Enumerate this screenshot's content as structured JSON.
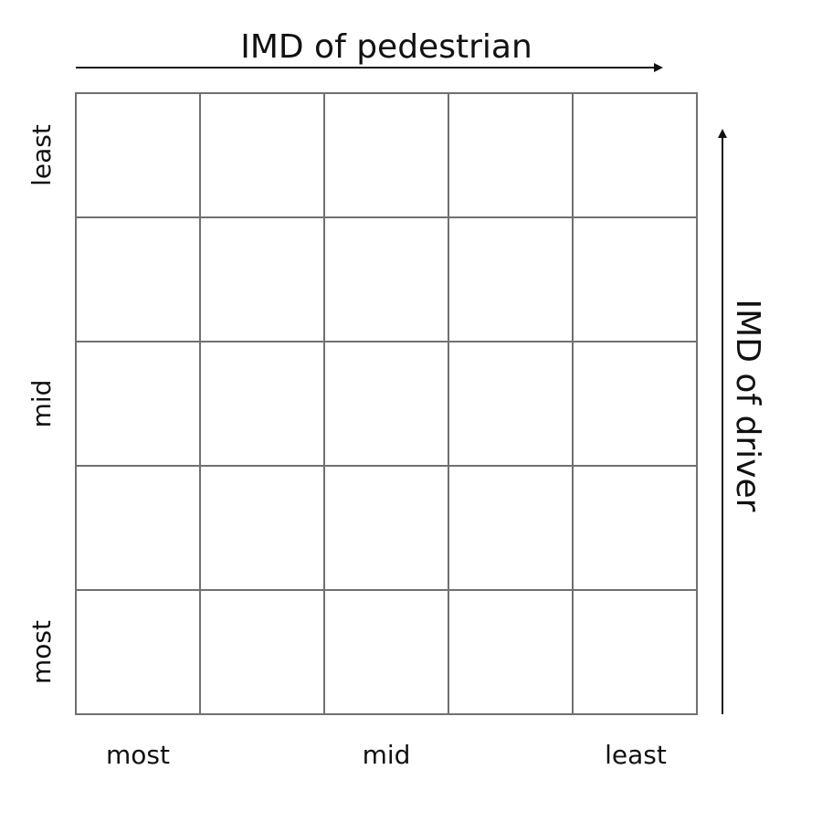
{
  "top_axis": {
    "label": "IMD of pedestrian"
  },
  "right_axis": {
    "label": "IMD of driver"
  },
  "bottom_ticks": [
    "most",
    "mid",
    "least"
  ],
  "left_ticks": [
    "least",
    "mid",
    "most"
  ],
  "grid": {
    "rows": 5,
    "cols": 5
  },
  "colors": {
    "grid_line": "#707070",
    "text": "#111111",
    "background": "#ffffff"
  }
}
